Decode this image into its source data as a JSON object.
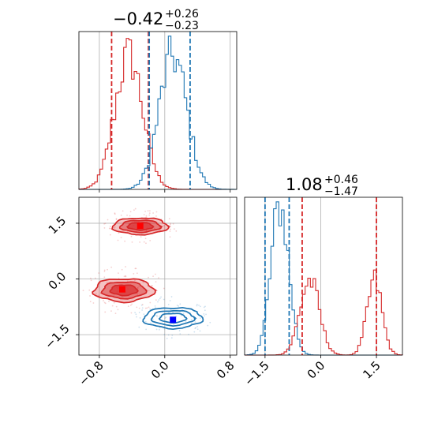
{
  "colors": {
    "red": "#d62728",
    "blue": "#1f77b4",
    "red_fill": "#d62728",
    "blue_marker": "#0000ff",
    "red_marker": "#ff0000"
  },
  "chart_data": {
    "type": "corner",
    "parameters": [
      {
        "title_value": "−0.42",
        "title_plus": "+0.26",
        "title_minus": "−0.23",
        "range": [
          -1.05,
          0.88
        ],
        "ticks": [
          -0.8,
          0.0,
          0.8
        ],
        "tick_labels": [
          "−0.8",
          "0.0",
          "0.8"
        ]
      },
      {
        "title_value": "1.08",
        "title_plus": "+0.46",
        "title_minus": "−1.47",
        "range": [
          -2.05,
          2.2
        ],
        "ticks": [
          -1.5,
          0.0,
          1.5
        ],
        "tick_labels": [
          "−1.5",
          "0.0",
          "1.5"
        ]
      }
    ],
    "grid": true,
    "histograms": [
      {
        "series": [
          {
            "name": "",
            "color": "red",
            "modes": [
              {
                "mu": -0.44,
                "sigma": 0.17,
                "w": 1.0
              }
            ],
            "quantiles": [
              -0.65,
              -0.2
            ]
          },
          {
            "name": "",
            "color": "blue",
            "modes": [
              {
                "mu": 0.1,
                "sigma": 0.17,
                "w": 1.0
              }
            ],
            "quantiles": [
              -0.19,
              0.31
            ]
          }
        ]
      },
      {
        "series": [
          {
            "name": "",
            "color": "blue",
            "modes": [
              {
                "mu": -1.1,
                "sigma": 0.24,
                "w": 1.0
              }
            ],
            "quantiles": [
              -1.5,
              -0.85
            ]
          },
          {
            "name": "",
            "color": "red",
            "modes": [
              {
                "mu": -0.3,
                "sigma": 0.26,
                "w": 0.5
              },
              {
                "mu": 1.45,
                "sigma": 0.2,
                "w": 0.5
              }
            ],
            "quantiles": [
              -0.5,
              1.5
            ]
          }
        ]
      }
    ],
    "joint": {
      "series": [
        {
          "name": "",
          "color": "red",
          "filled": true,
          "blobs": [
            {
              "cx": -0.3,
              "cy": 1.42,
              "rx": 0.34,
              "ry": 0.36,
              "marker": [
                -0.3,
                1.43
              ]
            },
            {
              "cx": -0.5,
              "cy": -0.3,
              "rx": 0.37,
              "ry": 0.5,
              "marker": [
                -0.52,
                -0.28
              ]
            }
          ]
        },
        {
          "name": "",
          "color": "blue",
          "filled": false,
          "blobs": [
            {
              "cx": 0.1,
              "cy": -1.05,
              "rx": 0.36,
              "ry": 0.45,
              "marker": [
                0.1,
                -1.1
              ]
            }
          ]
        }
      ],
      "xlim": [
        -1.05,
        0.88
      ],
      "ylim": [
        -2.05,
        2.2
      ]
    }
  }
}
